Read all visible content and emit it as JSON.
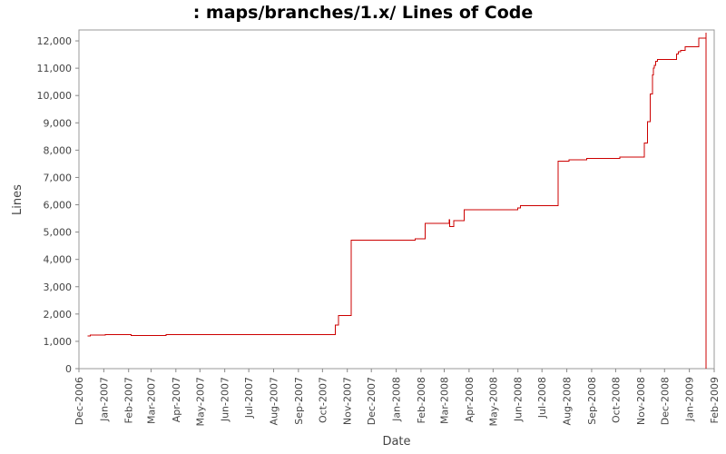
{
  "chart_data": {
    "type": "line",
    "title": ": maps/branches/1.x/ Lines of Code",
    "xlabel": "Date",
    "ylabel": "Lines",
    "x_range": [
      "2006-12-01",
      "2009-02-01"
    ],
    "ylim": [
      0,
      12400
    ],
    "y_ticks": [
      {
        "value": 0,
        "label": "0"
      },
      {
        "value": 1000,
        "label": "1,000"
      },
      {
        "value": 2000,
        "label": "2,000"
      },
      {
        "value": 3000,
        "label": "3,000"
      },
      {
        "value": 4000,
        "label": "4,000"
      },
      {
        "value": 5000,
        "label": "5,000"
      },
      {
        "value": 6000,
        "label": "6,000"
      },
      {
        "value": 7000,
        "label": "7,000"
      },
      {
        "value": 8000,
        "label": "8,000"
      },
      {
        "value": 9000,
        "label": "9,000"
      },
      {
        "value": 10000,
        "label": "10,000"
      },
      {
        "value": 11000,
        "label": "11,000"
      },
      {
        "value": 12000,
        "label": "12,000"
      }
    ],
    "x_ticks": [
      {
        "date": "2006-12-01",
        "label": "Dec-2006"
      },
      {
        "date": "2007-01-01",
        "label": "Jan-2007"
      },
      {
        "date": "2007-02-01",
        "label": "Feb-2007"
      },
      {
        "date": "2007-03-01",
        "label": "Mar-2007"
      },
      {
        "date": "2007-04-01",
        "label": "Apr-2007"
      },
      {
        "date": "2007-05-01",
        "label": "May-2007"
      },
      {
        "date": "2007-06-01",
        "label": "Jun-2007"
      },
      {
        "date": "2007-07-01",
        "label": "Jul-2007"
      },
      {
        "date": "2007-08-01",
        "label": "Aug-2007"
      },
      {
        "date": "2007-09-01",
        "label": "Sep-2007"
      },
      {
        "date": "2007-10-01",
        "label": "Oct-2007"
      },
      {
        "date": "2007-11-01",
        "label": "Nov-2007"
      },
      {
        "date": "2007-12-01",
        "label": "Dec-2007"
      },
      {
        "date": "2008-01-01",
        "label": "Jan-2008"
      },
      {
        "date": "2008-02-01",
        "label": "Feb-2008"
      },
      {
        "date": "2008-03-01",
        "label": "Mar-2008"
      },
      {
        "date": "2008-04-01",
        "label": "Apr-2008"
      },
      {
        "date": "2008-05-01",
        "label": "May-2008"
      },
      {
        "date": "2008-06-01",
        "label": "Jun-2008"
      },
      {
        "date": "2008-07-01",
        "label": "Jul-2008"
      },
      {
        "date": "2008-08-01",
        "label": "Aug-2008"
      },
      {
        "date": "2008-09-01",
        "label": "Sep-2008"
      },
      {
        "date": "2008-10-01",
        "label": "Oct-2008"
      },
      {
        "date": "2008-11-01",
        "label": "Nov-2008"
      },
      {
        "date": "2008-12-01",
        "label": "Dec-2008"
      },
      {
        "date": "2009-01-01",
        "label": "Jan-2009"
      },
      {
        "date": "2009-02-01",
        "label": "Feb-2009"
      }
    ],
    "grid": false,
    "legend": "none",
    "line_color": "#cc0000",
    "series": [
      {
        "step": true,
        "points": [
          {
            "date": "2006-12-12",
            "y": 1200
          },
          {
            "date": "2006-12-15",
            "y": 1230
          },
          {
            "date": "2007-01-03",
            "y": 1250
          },
          {
            "date": "2007-02-04",
            "y": 1220
          },
          {
            "date": "2007-03-20",
            "y": 1250
          },
          {
            "date": "2007-10-17",
            "y": 1600
          },
          {
            "date": "2007-10-21",
            "y": 1950
          },
          {
            "date": "2007-11-06",
            "y": 4700
          },
          {
            "date": "2008-01-25",
            "y": 4750
          },
          {
            "date": "2008-02-06",
            "y": 5320
          },
          {
            "date": "2008-03-07",
            "y": 5450
          },
          {
            "date": "2008-03-08",
            "y": 5200
          },
          {
            "date": "2008-03-13",
            "y": 5420
          },
          {
            "date": "2008-03-26",
            "y": 5810
          },
          {
            "date": "2008-06-01",
            "y": 5880
          },
          {
            "date": "2008-06-04",
            "y": 5960
          },
          {
            "date": "2008-07-21",
            "y": 7600
          },
          {
            "date": "2008-08-04",
            "y": 7650
          },
          {
            "date": "2008-08-26",
            "y": 7700
          },
          {
            "date": "2008-10-06",
            "y": 7740
          },
          {
            "date": "2008-11-06",
            "y": 8260
          },
          {
            "date": "2008-11-10",
            "y": 9050
          },
          {
            "date": "2008-11-13",
            "y": 10050
          },
          {
            "date": "2008-11-16",
            "y": 10750
          },
          {
            "date": "2008-11-17",
            "y": 11000
          },
          {
            "date": "2008-11-18",
            "y": 11100
          },
          {
            "date": "2008-11-20",
            "y": 11250
          },
          {
            "date": "2008-11-22",
            "y": 11320
          },
          {
            "date": "2008-12-16",
            "y": 11520
          },
          {
            "date": "2008-12-18",
            "y": 11600
          },
          {
            "date": "2008-12-21",
            "y": 11650
          },
          {
            "date": "2008-12-27",
            "y": 11780
          },
          {
            "date": "2009-01-13",
            "y": 12100
          },
          {
            "date": "2009-01-22",
            "y": 12300
          },
          {
            "date": "2009-01-22",
            "y": 0
          }
        ]
      }
    ]
  }
}
